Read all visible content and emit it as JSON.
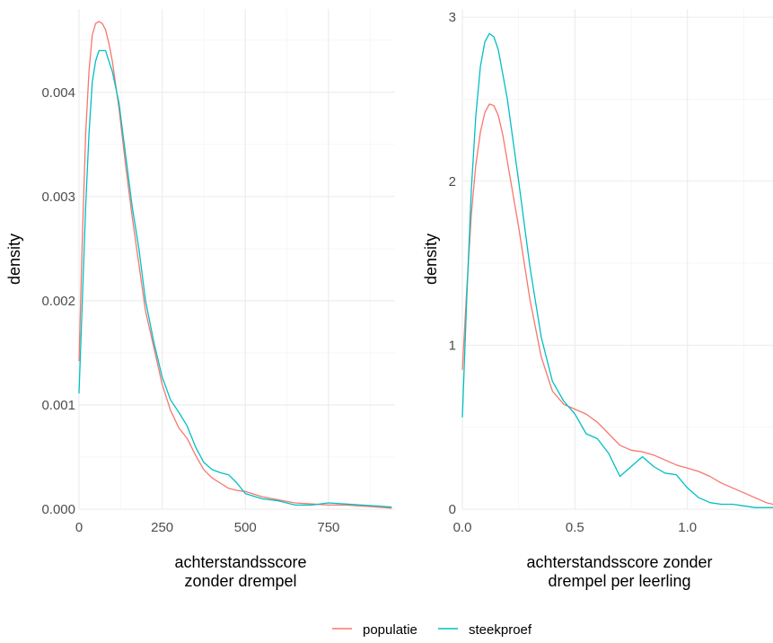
{
  "colors": {
    "populatie": "#F8766D",
    "steekproef": "#00BFC4"
  },
  "legend": {
    "position": "bottom",
    "items": [
      "populatie",
      "steekproef"
    ]
  },
  "chart_data": [
    {
      "type": "line",
      "xlabel": [
        "achterstandsscore",
        "zonder drempel"
      ],
      "ylabel": "density",
      "xlim": [
        0,
        950
      ],
      "ylim": [
        0,
        0.0048
      ],
      "xticks": [
        0,
        250,
        500,
        750
      ],
      "xtick_labels": [
        "0",
        "250",
        "500",
        "750"
      ],
      "yticks": [
        0,
        0.001,
        0.002,
        0.003,
        0.004
      ],
      "ytick_labels": [
        "0.000",
        "0.001",
        "0.002",
        "0.003",
        "0.004"
      ],
      "grid": true,
      "series": [
        {
          "name": "populatie",
          "x": [
            0,
            10,
            20,
            30,
            40,
            50,
            60,
            70,
            80,
            90,
            100,
            120,
            140,
            160,
            180,
            200,
            225,
            250,
            275,
            300,
            325,
            350,
            375,
            400,
            425,
            450,
            475,
            500,
            550,
            600,
            650,
            700,
            750,
            800,
            850,
            900,
            940
          ],
          "y": [
            0.00142,
            0.0026,
            0.0036,
            0.0042,
            0.00455,
            0.00466,
            0.00468,
            0.00466,
            0.0046,
            0.00447,
            0.0043,
            0.00385,
            0.0033,
            0.0028,
            0.00235,
            0.0019,
            0.00155,
            0.0012,
            0.00095,
            0.00078,
            0.00068,
            0.00052,
            0.00038,
            0.0003,
            0.00025,
            0.0002,
            0.00018,
            0.00017,
            0.00012,
            9e-05,
            6e-05,
            5e-05,
            4e-05,
            4e-05,
            3e-05,
            2e-05,
            1e-05
          ]
        },
        {
          "name": "steekproef",
          "x": [
            0,
            10,
            20,
            30,
            40,
            50,
            60,
            70,
            80,
            90,
            100,
            120,
            140,
            160,
            180,
            200,
            225,
            250,
            275,
            300,
            325,
            350,
            375,
            400,
            425,
            450,
            475,
            500,
            550,
            600,
            650,
            700,
            750,
            800,
            850,
            900,
            940
          ],
          "y": [
            0.00111,
            0.002,
            0.0029,
            0.0036,
            0.0041,
            0.0043,
            0.0044,
            0.0044,
            0.0044,
            0.0043,
            0.0042,
            0.0039,
            0.0034,
            0.0029,
            0.0025,
            0.002,
            0.0016,
            0.00127,
            0.00105,
            0.00093,
            0.0008,
            0.0006,
            0.00045,
            0.00038,
            0.00035,
            0.00033,
            0.00025,
            0.00015,
            0.0001,
            8e-05,
            4e-05,
            4e-05,
            6e-05,
            5e-05,
            4e-05,
            3e-05,
            2e-05
          ]
        }
      ]
    },
    {
      "type": "line",
      "xlabel": [
        "achterstandsscore zonder",
        "drempel per leerling"
      ],
      "ylabel": "density",
      "xlim": [
        0,
        1.38
      ],
      "ylim": [
        0,
        3.05
      ],
      "xticks": [
        0,
        0.5,
        1
      ],
      "xtick_labels": [
        "0.0",
        "0.5",
        "1.0"
      ],
      "yticks": [
        0,
        1,
        2,
        3
      ],
      "ytick_labels": [
        "0",
        "1",
        "2",
        "3"
      ],
      "grid": true,
      "series": [
        {
          "name": "populatie",
          "x": [
            0,
            0.02,
            0.04,
            0.06,
            0.08,
            0.1,
            0.12,
            0.14,
            0.16,
            0.18,
            0.2,
            0.25,
            0.3,
            0.35,
            0.4,
            0.45,
            0.5,
            0.55,
            0.6,
            0.65,
            0.7,
            0.75,
            0.8,
            0.85,
            0.9,
            0.95,
            1.0,
            1.05,
            1.1,
            1.15,
            1.2,
            1.25,
            1.3,
            1.35,
            1.38
          ],
          "y": [
            0.85,
            1.35,
            1.8,
            2.1,
            2.3,
            2.42,
            2.47,
            2.46,
            2.4,
            2.28,
            2.12,
            1.72,
            1.28,
            0.93,
            0.72,
            0.64,
            0.61,
            0.58,
            0.53,
            0.46,
            0.39,
            0.36,
            0.35,
            0.33,
            0.3,
            0.27,
            0.25,
            0.23,
            0.2,
            0.16,
            0.13,
            0.1,
            0.07,
            0.04,
            0.03
          ]
        },
        {
          "name": "steekproef",
          "x": [
            0,
            0.02,
            0.04,
            0.06,
            0.08,
            0.1,
            0.12,
            0.14,
            0.16,
            0.18,
            0.2,
            0.25,
            0.3,
            0.35,
            0.4,
            0.45,
            0.5,
            0.55,
            0.6,
            0.65,
            0.7,
            0.75,
            0.8,
            0.85,
            0.9,
            0.95,
            1.0,
            1.05,
            1.1,
            1.15,
            1.2,
            1.25,
            1.3,
            1.35,
            1.38
          ],
          "y": [
            0.56,
            1.3,
            1.95,
            2.4,
            2.7,
            2.85,
            2.9,
            2.88,
            2.8,
            2.65,
            2.5,
            2.0,
            1.48,
            1.05,
            0.78,
            0.66,
            0.58,
            0.46,
            0.43,
            0.34,
            0.2,
            0.26,
            0.32,
            0.26,
            0.22,
            0.21,
            0.13,
            0.07,
            0.04,
            0.03,
            0.03,
            0.02,
            0.01,
            0.01,
            0.01
          ]
        }
      ]
    }
  ]
}
